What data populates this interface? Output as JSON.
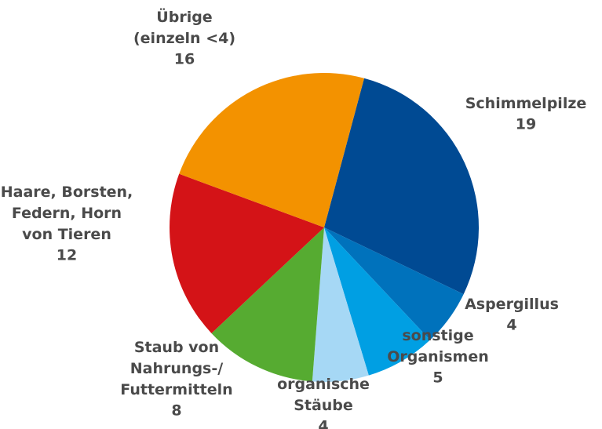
{
  "chart_data": {
    "type": "pie",
    "categories": [
      "Schimmelpilze",
      "Aspergillus",
      "sonstige\nOrganismen",
      "organische\nStäube",
      "Staub von\nNahrungs-/\nFuttermitteln",
      "Haare, Borsten,\nFedern, Horn\nvon Tieren",
      "Übrige\n(einzeln <4)"
    ],
    "values": [
      19,
      4,
      5,
      4,
      8,
      12,
      16
    ],
    "colors": [
      "#004a93",
      "#0072bc",
      "#009fe3",
      "#a6d8f5",
      "#56ab31",
      "#d41317",
      "#f39200"
    ]
  }
}
